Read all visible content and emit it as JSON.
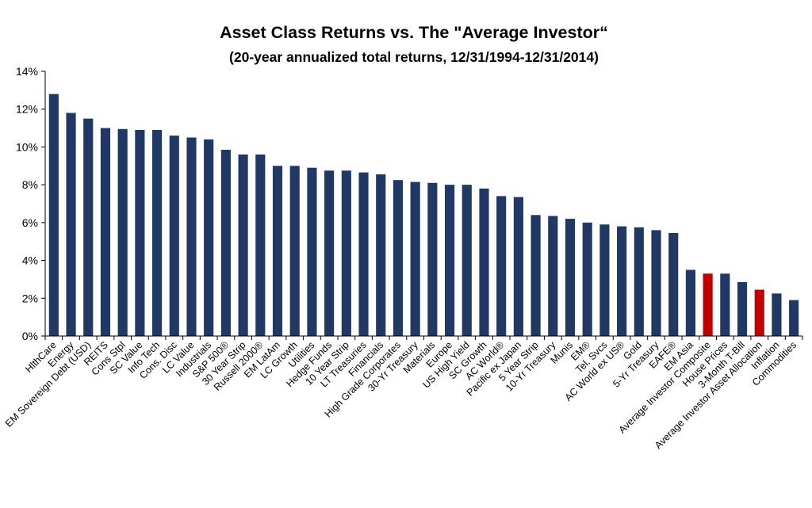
{
  "colors": {
    "bar": "#1f3864",
    "highlight": "#c00000",
    "grid": "#bfbfbf",
    "axis": "#000000"
  },
  "chart_data": {
    "type": "bar",
    "title": "Asset Class Returns vs. The \"Average Investor“",
    "subtitle": "(20-year annualized total returns, 12/31/1994-12/31/2014)",
    "xlabel": "",
    "ylabel": "",
    "ylim": [
      0,
      14
    ],
    "y_ticks": [
      "0%",
      "2%",
      "4%",
      "6%",
      "8%",
      "10%",
      "12%",
      "14%"
    ],
    "grid": false,
    "legend": "none",
    "categories": [
      "HlthCare",
      "Energy",
      "EM Sovereign Debt (USD)",
      "REITS",
      "Cons Stpl",
      "SC Value",
      "Info Tech",
      "Cons. Disc",
      "LC Value",
      "Industrials",
      "S&P 500®",
      "30 Year Strip",
      "Russell 2000®",
      "EM LatAm",
      "LC Growth",
      "Utilities",
      "Hedge Funds",
      "10 Year Strip",
      "LT Treasuries",
      "Financials",
      "High Grade Corporates",
      "30-Yr Treasury",
      "Materials",
      "Europe",
      "US High Yield",
      "SC Growth",
      "AC World®",
      "Pacific ex Japan",
      "5 Year Strip",
      "10-Yr Treasury",
      "Munis",
      "EM®",
      "Tel. Svcs",
      "AC World ex US®",
      "Gold",
      "5-Yr Treasury",
      "EAFE®",
      "EM Asia",
      "Average Investor Composite",
      "House Prices",
      "3-Month T-Bill",
      "Average Investor Asset Allocation",
      "Inflation",
      "Commodities"
    ],
    "values": [
      12.8,
      11.8,
      11.5,
      11.0,
      10.95,
      10.9,
      10.9,
      10.6,
      10.5,
      10.4,
      9.85,
      9.6,
      9.6,
      9.0,
      9.0,
      8.9,
      8.75,
      8.75,
      8.65,
      8.55,
      8.25,
      8.15,
      8.1,
      8.0,
      8.0,
      7.8,
      7.4,
      7.35,
      6.4,
      6.35,
      6.2,
      6.0,
      5.9,
      5.8,
      5.75,
      5.6,
      5.45,
      3.5,
      3.3,
      3.3,
      2.85,
      2.45,
      2.25,
      1.9
    ],
    "highlighted": [
      "Average Investor Composite",
      "Average Investor Asset Allocation"
    ]
  }
}
